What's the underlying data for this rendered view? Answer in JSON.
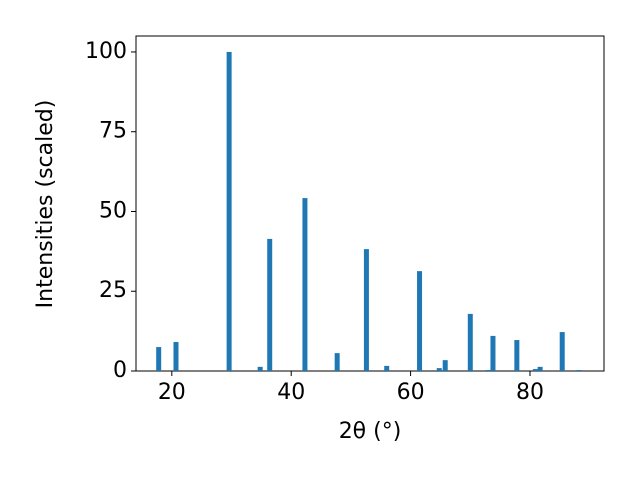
{
  "chart_data": {
    "type": "bar",
    "x_label": "2θ (°)",
    "y_label": "Intensities (scaled)",
    "x": [
      17.8,
      20.7,
      29.6,
      34.8,
      36.4,
      42.3,
      47.7,
      52.6,
      56.0,
      61.5,
      64.8,
      65.8,
      70.0,
      73.0,
      73.8,
      77.8,
      80.9,
      81.7,
      85.4,
      88.2
    ],
    "values": [
      7.5,
      9.1,
      100,
      1.3,
      41.4,
      54.2,
      5.6,
      38.2,
      1.6,
      31.3,
      0.9,
      3.4,
      17.9,
      0.3,
      11.0,
      9.7,
      0.6,
      1.3,
      12.2,
      0.3
    ],
    "color": "#1f77b4",
    "xlim": [
      14,
      92.4
    ],
    "ylim": [
      0,
      105
    ],
    "xticks": [
      20,
      40,
      60,
      80
    ],
    "yticks": [
      0,
      25,
      50,
      75,
      100
    ]
  }
}
